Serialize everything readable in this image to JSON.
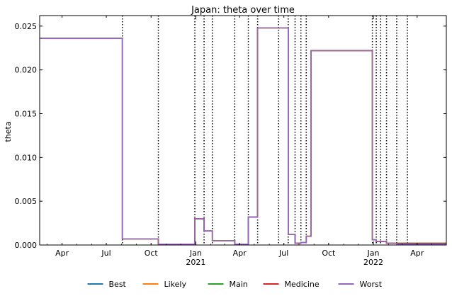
{
  "chart_data": {
    "type": "line",
    "title": "Japan: theta over time",
    "xlabel": "",
    "ylabel": "theta",
    "x_axis": {
      "type": "date",
      "range": [
        "2020-02-15",
        "2022-05-31"
      ],
      "major_ticks": [
        {
          "date": "2021-01-01",
          "label": "Jan",
          "sublabel": "2021"
        },
        {
          "date": "2022-01-01",
          "label": "Jan",
          "sublabel": "2022"
        }
      ],
      "minor_ticks": [
        {
          "date": "2020-04-01",
          "label": "Apr"
        },
        {
          "date": "2020-07-01",
          "label": "Jul"
        },
        {
          "date": "2020-10-01",
          "label": "Oct"
        },
        {
          "date": "2021-04-01",
          "label": "Apr"
        },
        {
          "date": "2021-07-01",
          "label": "Jul"
        },
        {
          "date": "2021-10-01",
          "label": "Oct"
        },
        {
          "date": "2022-04-01",
          "label": "Apr"
        }
      ]
    },
    "y_axis": {
      "range": [
        0,
        0.0262
      ],
      "ticks": [
        {
          "value": 0,
          "label": "0.000"
        },
        {
          "value": 0.005,
          "label": "0.005"
        },
        {
          "value": 0.01,
          "label": "0.010"
        },
        {
          "value": 0.015,
          "label": "0.015"
        },
        {
          "value": 0.02,
          "label": "0.020"
        },
        {
          "value": 0.025,
          "label": "0.025"
        }
      ]
    },
    "change_points": [
      "2020-08-03",
      "2020-10-16",
      "2020-12-30",
      "2021-01-18",
      "2021-02-04",
      "2021-03-22",
      "2021-04-19",
      "2021-05-08",
      "2021-06-20",
      "2021-07-10",
      "2021-07-24",
      "2021-08-05",
      "2021-08-16",
      "2021-12-30",
      "2022-01-07",
      "2022-01-16",
      "2022-01-28",
      "2022-02-18",
      "2022-03-12"
    ],
    "grid": false,
    "legend_placement": "bottom",
    "series": [
      {
        "name": "Best",
        "color": "#1f77b4",
        "steps": [
          [
            "2020-02-15",
            0.0236
          ],
          [
            "2020-08-03",
            0.0007
          ],
          [
            "2020-10-16",
            0.0001
          ],
          [
            "2020-12-30",
            0.003
          ],
          [
            "2021-01-18",
            0.0016
          ],
          [
            "2021-02-04",
            0.0005
          ],
          [
            "2021-03-22",
            0.0001
          ],
          [
            "2021-04-19",
            0.0032
          ],
          [
            "2021-05-08",
            0.0248
          ],
          [
            "2021-07-10",
            0.0012
          ],
          [
            "2021-07-24",
            0.0002
          ],
          [
            "2021-08-05",
            0.0003
          ],
          [
            "2021-08-16",
            0.001
          ],
          [
            "2021-08-26",
            0.0222
          ],
          [
            "2021-12-30",
            0.0006
          ],
          [
            "2022-01-07",
            0.0004
          ],
          [
            "2022-01-16",
            0.0004
          ],
          [
            "2022-01-28",
            0.0002
          ],
          [
            "2022-02-18",
            0.0001
          ],
          [
            "2022-03-12",
            0.0001
          ]
        ],
        "end": "2022-05-31"
      },
      {
        "name": "Likely",
        "color": "#ff7f0e",
        "steps": [
          [
            "2020-02-15",
            0.0236
          ],
          [
            "2020-08-03",
            0.0007
          ],
          [
            "2020-10-16",
            0.0001
          ],
          [
            "2020-12-30",
            0.003
          ],
          [
            "2021-01-18",
            0.0016
          ],
          [
            "2021-02-04",
            0.0005
          ],
          [
            "2021-03-22",
            0.0001
          ],
          [
            "2021-04-19",
            0.0032
          ],
          [
            "2021-05-08",
            0.0248
          ],
          [
            "2021-07-10",
            0.0012
          ],
          [
            "2021-07-24",
            0.0002
          ],
          [
            "2021-08-05",
            0.0003
          ],
          [
            "2021-08-16",
            0.001
          ],
          [
            "2021-08-26",
            0.0222
          ],
          [
            "2021-12-30",
            0.0006
          ],
          [
            "2022-01-07",
            0.0004
          ],
          [
            "2022-01-16",
            0.0004
          ],
          [
            "2022-01-28",
            0.0002
          ],
          [
            "2022-02-18",
            0.0002
          ],
          [
            "2022-03-12",
            0.0002
          ]
        ],
        "end": "2022-05-31"
      },
      {
        "name": "Main",
        "color": "#2ca02c",
        "steps": [
          [
            "2020-02-15",
            0.0236
          ],
          [
            "2020-08-03",
            0.0007
          ],
          [
            "2020-10-16",
            0.0001
          ],
          [
            "2020-12-30",
            0.003
          ],
          [
            "2021-01-18",
            0.0016
          ],
          [
            "2021-02-04",
            0.0005
          ],
          [
            "2021-03-22",
            0.0001
          ],
          [
            "2021-04-19",
            0.0032
          ],
          [
            "2021-05-08",
            0.0248
          ],
          [
            "2021-07-10",
            0.0012
          ],
          [
            "2021-07-24",
            0.0002
          ],
          [
            "2021-08-05",
            0.0003
          ],
          [
            "2021-08-16",
            0.001
          ],
          [
            "2021-08-26",
            0.0222
          ],
          [
            "2021-12-30",
            0.0006
          ],
          [
            "2022-01-07",
            0.0004
          ],
          [
            "2022-01-16",
            0.0004
          ],
          [
            "2022-01-28",
            0.0002
          ],
          [
            "2022-02-18",
            0.0002
          ],
          [
            "2022-03-12",
            0.0002
          ]
        ],
        "end": "2022-05-31"
      },
      {
        "name": "Medicine",
        "color": "#d62728",
        "steps": [
          [
            "2020-02-15",
            0.0236
          ],
          [
            "2020-08-03",
            0.0007
          ],
          [
            "2020-10-16",
            0.0001
          ],
          [
            "2020-12-30",
            0.003
          ],
          [
            "2021-01-18",
            0.0016
          ],
          [
            "2021-02-04",
            0.0005
          ],
          [
            "2021-03-22",
            0.0001
          ],
          [
            "2021-04-19",
            0.0032
          ],
          [
            "2021-05-08",
            0.0248
          ],
          [
            "2021-07-10",
            0.0012
          ],
          [
            "2021-07-24",
            0.0002
          ],
          [
            "2021-08-05",
            0.0003
          ],
          [
            "2021-08-16",
            0.001
          ],
          [
            "2021-08-26",
            0.0222
          ],
          [
            "2021-12-30",
            0.0006
          ],
          [
            "2022-01-07",
            0.0004
          ],
          [
            "2022-01-16",
            0.0004
          ],
          [
            "2022-01-28",
            0.0002
          ],
          [
            "2022-02-18",
            0.0002
          ],
          [
            "2022-03-12",
            0.0002
          ]
        ],
        "end": "2022-05-31"
      },
      {
        "name": "Worst",
        "color": "#9467bd",
        "steps": [
          [
            "2020-02-15",
            0.0236
          ],
          [
            "2020-08-03",
            0.0007
          ],
          [
            "2020-10-16",
            0.0001
          ],
          [
            "2020-12-30",
            0.003
          ],
          [
            "2021-01-18",
            0.0016
          ],
          [
            "2021-02-04",
            0.0005
          ],
          [
            "2021-03-22",
            0.0001
          ],
          [
            "2021-04-19",
            0.0032
          ],
          [
            "2021-05-08",
            0.0248
          ],
          [
            "2021-07-10",
            0.0012
          ],
          [
            "2021-07-24",
            0.0002
          ],
          [
            "2021-08-05",
            0.0003
          ],
          [
            "2021-08-16",
            0.001
          ],
          [
            "2021-08-26",
            0.0222
          ],
          [
            "2021-12-30",
            0.0006
          ],
          [
            "2022-01-07",
            0.0004
          ],
          [
            "2022-01-16",
            0.0004
          ],
          [
            "2022-01-28",
            0.0002
          ],
          [
            "2022-02-18",
            0.0001
          ],
          [
            "2022-03-12",
            0.0001
          ]
        ],
        "end": "2022-05-31"
      }
    ]
  }
}
